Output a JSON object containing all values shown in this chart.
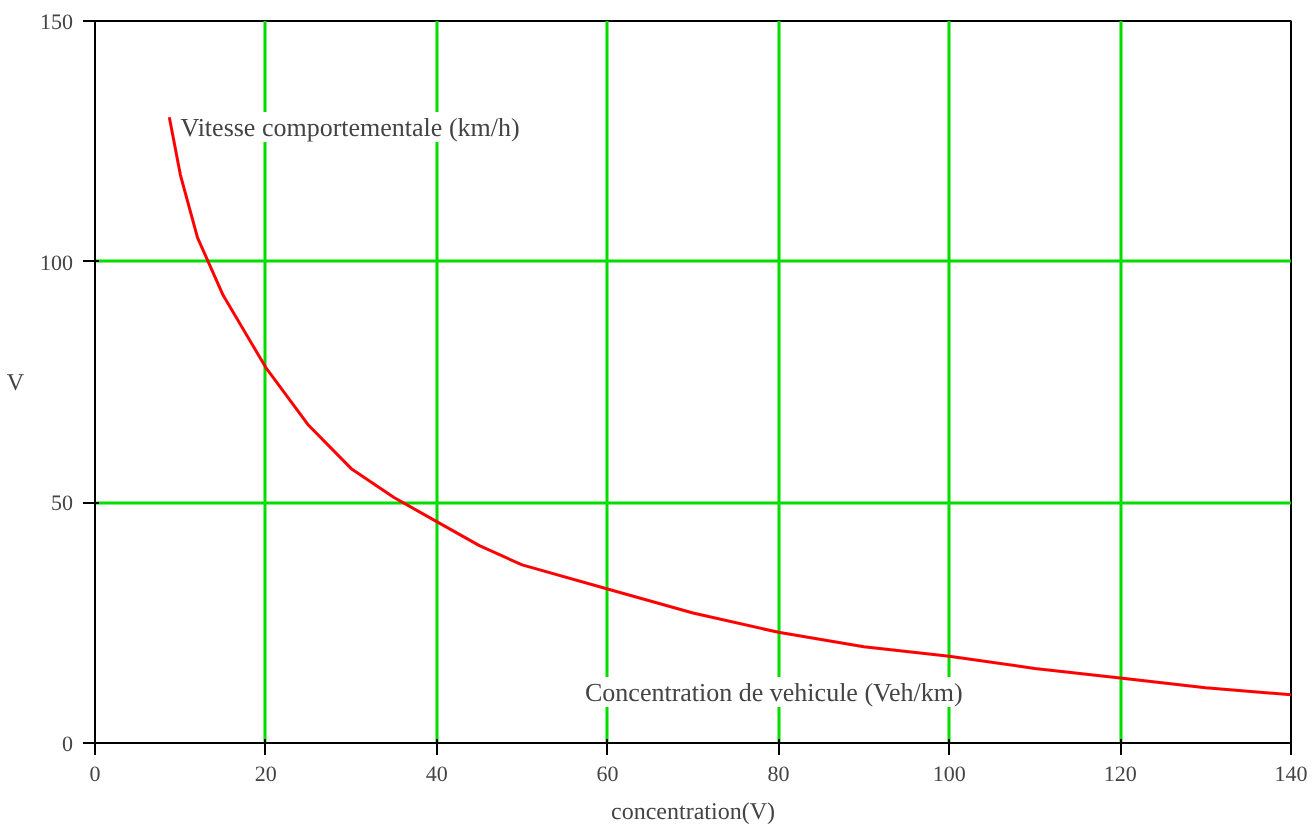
{
  "chart_data": {
    "type": "line",
    "xlabel": "concentration(V)",
    "ylabel": "V",
    "series": [
      {
        "color": "#ff0000",
        "x": [
          8.7,
          10,
          12,
          15,
          20,
          25,
          30,
          35,
          40,
          45,
          50,
          60,
          70,
          80,
          90,
          100,
          110,
          120,
          130,
          140
        ],
        "values": [
          130,
          118,
          105,
          93,
          78,
          66,
          57,
          51,
          46,
          41,
          37,
          32,
          27,
          23,
          20,
          18,
          15.5,
          13.5,
          11.5,
          10
        ]
      }
    ],
    "xlim": [
      0,
      140
    ],
    "ylim": [
      0,
      150
    ],
    "xticks": [
      0,
      20,
      40,
      60,
      80,
      100,
      120,
      140
    ],
    "yticks": [
      0,
      50,
      100,
      150
    ],
    "grid": true,
    "annotations": [
      {
        "text": "Vitesse comportementale (km/h)",
        "x": 10,
        "y": 128
      },
      "Concentration de vehicule (Veh/km)"
    ]
  }
}
